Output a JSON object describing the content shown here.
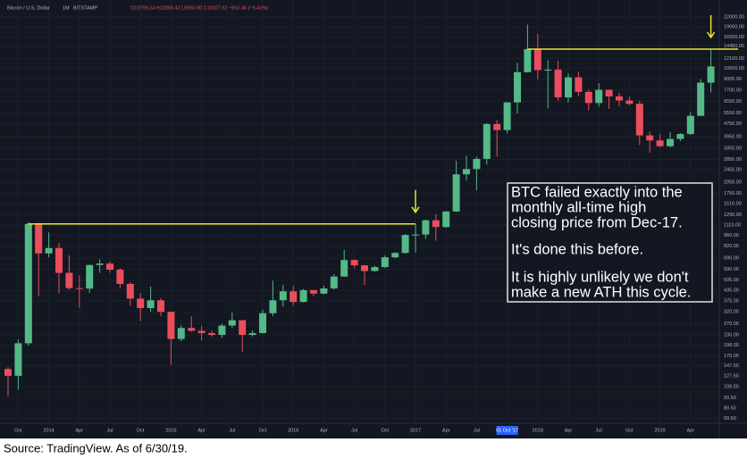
{
  "chart_data": {
    "type": "candlestick",
    "header": {
      "symbol": "Bitcoin / U.S. Dollar",
      "interval": "1M",
      "exchange": "BITSTAMP",
      "quote": "O10759.24 H12000.41 L9950.00 C10107.62 −652.46 (−5.41%)"
    },
    "categories": [
      null,
      "Oct",
      null,
      null,
      "2014",
      null,
      null,
      "Apr",
      null,
      null,
      "Jul",
      null,
      null,
      "Oct",
      null,
      null,
      "2015",
      null,
      null,
      "Apr",
      null,
      null,
      "Jul",
      null,
      null,
      "Oct",
      null,
      null,
      "2016",
      null,
      null,
      "Apr",
      null,
      null,
      "Jul",
      null,
      null,
      "Oct",
      null,
      null,
      "2017",
      null,
      null,
      "Apr",
      null,
      null,
      "Jul",
      null,
      null,
      "01 Oct '17",
      null,
      null,
      "2018",
      null,
      null,
      "Apr",
      null,
      null,
      "Jul",
      null,
      null,
      "Oct",
      null,
      null,
      "2019",
      null,
      null,
      "Apr",
      null,
      null
    ],
    "highlight_category": 49,
    "open": [
      141,
      128,
      204,
      1130,
      740,
      800,
      560,
      450,
      447,
      627,
      640,
      586,
      478,
      387,
      338,
      378,
      320,
      217,
      254,
      244,
      236,
      230,
      263,
      284,
      230,
      236,
      314,
      378,
      430,
      369,
      437,
      416,
      448,
      531,
      673,
      624,
      575,
      608,
      700,
      745,
      964,
      970,
      1190,
      1080,
      1350,
      2300,
      2480,
      2870,
      4730,
      4340,
      6450,
      9950,
      13850,
      10250,
      10320,
      6930,
      9240,
      7500,
      6390,
      7730,
      7030,
      6630,
      6320,
      4020,
      3740,
      3440,
      3820,
      4100,
      5320,
      8560
    ],
    "high": [
      145,
      215,
      1163,
      1150,
      1000,
      860,
      720,
      540,
      630,
      680,
      660,
      600,
      490,
      420,
      460,
      390,
      320,
      265,
      300,
      262,
      245,
      270,
      317,
      285,
      245,
      330,
      500,
      470,
      465,
      445,
      440,
      467,
      550,
      780,
      680,
      625,
      620,
      720,
      755,
      975,
      1130,
      1200,
      1300,
      1360,
      2790,
      3000,
      2950,
      4800,
      5000,
      6470,
      11400,
      19660,
      17180,
      11790,
      11700,
      9770,
      9990,
      7770,
      8500,
      7750,
      7400,
      7000,
      6600,
      4240,
      4110,
      4200,
      4150,
      5600,
      9000,
      13880
    ],
    "low": [
      95,
      105,
      197,
      400,
      700,
      420,
      440,
      340,
      420,
      560,
      560,
      450,
      350,
      280,
      320,
      300,
      150,
      210,
      240,
      212,
      225,
      220,
      255,
      180,
      225,
      235,
      300,
      345,
      350,
      366,
      400,
      412,
      440,
      530,
      600,
      470,
      570,
      600,
      690,
      740,
      750,
      910,
      890,
      1070,
      1340,
      2100,
      1830,
      2650,
      2970,
      4140,
      5500,
      9900,
      9000,
      5920,
      6600,
      6430,
      7030,
      5750,
      6070,
      5880,
      6100,
      6200,
      3500,
      3130,
      3400,
      3380,
      3700,
      4050,
      5300,
      7450
    ],
    "close": [
      128,
      204,
      1130,
      740,
      800,
      560,
      450,
      447,
      627,
      640,
      586,
      478,
      387,
      338,
      378,
      320,
      217,
      254,
      244,
      236,
      230,
      263,
      284,
      230,
      236,
      314,
      378,
      430,
      369,
      437,
      416,
      448,
      531,
      673,
      624,
      575,
      608,
      700,
      745,
      964,
      970,
      1190,
      1080,
      1350,
      2300,
      2480,
      2870,
      4730,
      4340,
      6450,
      9950,
      13850,
      10250,
      10320,
      6930,
      9240,
      7500,
      6390,
      7730,
      7030,
      6630,
      6320,
      4020,
      3740,
      3440,
      3820,
      4100,
      5320,
      8560,
      10800
    ],
    "up_color": "#53b987",
    "down_color": "#eb4d5c",
    "yscale": "log",
    "ylim": [
      60,
      28000
    ],
    "yticks": [
      {
        "value": 22000,
        "label": "22000.00"
      },
      {
        "value": 19000,
        "label": "19000.00"
      },
      {
        "value": 16500,
        "label": "16500.00"
      },
      {
        "value": 14450,
        "label": "14450.00"
      },
      {
        "value": 12100,
        "label": "12100.00"
      },
      {
        "value": 10500,
        "label": "10500.00"
      },
      {
        "value": 9000,
        "label": "9000.00"
      },
      {
        "value": 7700,
        "label": "7700.00"
      },
      {
        "value": 6550,
        "label": "6550.00"
      },
      {
        "value": 5550,
        "label": "5550.00"
      },
      {
        "value": 4750,
        "label": "4750.00"
      },
      {
        "value": 3950,
        "label": "3950.00"
      },
      {
        "value": 3350,
        "label": "3350.00"
      },
      {
        "value": 2850,
        "label": "2850.00"
      },
      {
        "value": 2450,
        "label": "2450.00"
      },
      {
        "value": 2050,
        "label": "2050.00"
      },
      {
        "value": 1750,
        "label": "1750.00"
      },
      {
        "value": 1510,
        "label": "1510.00"
      },
      {
        "value": 1290,
        "label": "1290.00"
      },
      {
        "value": 1110,
        "label": "1110.00"
      },
      {
        "value": 960,
        "label": "960.00"
      },
      {
        "value": 820,
        "label": "820.00"
      },
      {
        "value": 690,
        "label": "690.00"
      },
      {
        "value": 590,
        "label": "590.00"
      },
      {
        "value": 505,
        "label": "505.00"
      },
      {
        "value": 435,
        "label": "435.00"
      },
      {
        "value": 375,
        "label": "375.00"
      },
      {
        "value": 320,
        "label": "320.00"
      },
      {
        "value": 270,
        "label": "270.00"
      },
      {
        "value": 230,
        "label": "230.00"
      },
      {
        "value": 198,
        "label": "198.00"
      },
      {
        "value": 170,
        "label": "170.00"
      },
      {
        "value": 147.5,
        "label": "147.50"
      },
      {
        "value": 127.5,
        "label": "127.50"
      },
      {
        "value": 109.5,
        "label": "109.50"
      },
      {
        "value": 93.5,
        "label": "93.50"
      },
      {
        "value": 80.5,
        "label": "80.50"
      },
      {
        "value": 69.5,
        "label": "69.50"
      }
    ],
    "grid": true,
    "levels": [
      {
        "value": 1130,
        "from": 2,
        "to": 40,
        "color": "#e6e62e"
      },
      {
        "value": 13850,
        "from": 51,
        "to": 69,
        "color": "#e6e62e"
      }
    ],
    "annotation": [
      "BTC failed exactly into the",
      "monthly all-time high",
      "closing price from Dec-17.",
      "It's done this before.",
      "It is highly unlikely we don't",
      "make a new ATH this cycle."
    ],
    "source": "Source: TradingView. As of 6/30/19."
  }
}
